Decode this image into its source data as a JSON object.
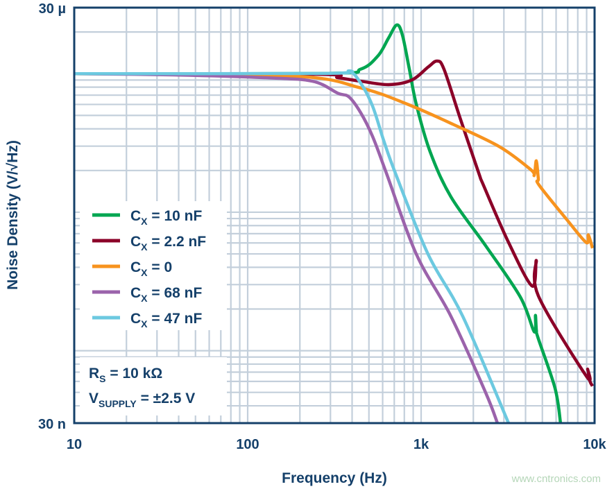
{
  "chart_data": {
    "type": "line",
    "xlabel": "Frequency (Hz)",
    "ylabel": "Noise Density (V/√Hz)",
    "x_scale": "log",
    "y_scale": "log",
    "xlim": [
      10,
      10000
    ],
    "ylim": [
      3e-08,
      3e-05
    ],
    "x_ticks": [
      {
        "value": 10,
        "label": "10"
      },
      {
        "value": 100,
        "label": "100"
      },
      {
        "value": 1000,
        "label": "1k"
      },
      {
        "value": 10000,
        "label": "10k"
      }
    ],
    "y_ticks": [
      {
        "value": 3e-05,
        "label": "30 µ"
      },
      {
        "value": 3e-08,
        "label": "30 n"
      }
    ],
    "grid": true,
    "legend_position": "left",
    "series": [
      {
        "name": "CX = 10 nF",
        "label": {
          "main": "C",
          "sub": "X",
          "rest": " = 10 nF"
        },
        "color": "#00a651",
        "points": [
          [
            10,
            1e-05
          ],
          [
            283,
            1.005e-05
          ],
          [
            449,
            1.08e-05
          ],
          [
            565,
            1.35e-05
          ],
          [
            649,
            1.81e-05
          ],
          [
            724,
            2.25e-05
          ],
          [
            780,
            1.9e-05
          ],
          [
            855,
            1.08e-05
          ],
          [
            938,
            6e-06
          ],
          [
            1127,
            2.73e-06
          ],
          [
            1486,
            1.29e-06
          ],
          [
            2355,
            5.73e-07
          ],
          [
            3733,
            2.44e-07
          ],
          [
            4490,
            1.37e-07
          ],
          [
            4560,
            1.8e-07
          ],
          [
            4620,
            1.4e-07
          ],
          [
            4740,
            1.22e-07
          ],
          [
            5920,
            5.34e-08
          ],
          [
            6370,
            2.97e-08
          ]
        ]
      },
      {
        "name": "CX = 2.2 nF",
        "label": {
          "main": "C",
          "sub": "X",
          "rest": " = 2.2 nF"
        },
        "color": "#8b0028",
        "points": [
          [
            10,
            1e-05
          ],
          [
            250,
            9.9e-06
          ],
          [
            331,
            9.36e-06
          ],
          [
            449,
            8.83e-06
          ],
          [
            649,
            8.34e-06
          ],
          [
            880,
            8.98e-06
          ],
          [
            1100,
            1.12e-05
          ],
          [
            1236,
            1.234e-05
          ],
          [
            1355,
            1.077e-05
          ],
          [
            1675,
            4.81e-06
          ],
          [
            2148,
            1.92e-06
          ],
          [
            2291,
            1.56e-06
          ],
          [
            3192,
            6.05e-07
          ],
          [
            4365,
            2.93e-07
          ],
          [
            4613,
            4.48e-07
          ],
          [
            4740,
            2.49e-07
          ],
          [
            8954,
            6.56e-08
          ],
          [
            9120,
            7.36e-08
          ],
          [
            9376,
            6.08e-08
          ],
          [
            9727,
            5.55e-08
          ]
        ]
      },
      {
        "name": "CX = 0",
        "label": {
          "main": "C",
          "sub": "X",
          "rest": " = 0"
        },
        "color": "#f7931e",
        "points": [
          [
            10,
            1e-05
          ],
          [
            179,
            9.62e-06
          ],
          [
            449,
            7.89e-06
          ],
          [
            832,
            6.03e-06
          ],
          [
            1528,
            4.31e-06
          ],
          [
            2831,
            2.97e-06
          ],
          [
            4285,
            2.03e-06
          ],
          [
            4487,
            1.85e-06
          ],
          [
            4613,
            2.35e-06
          ],
          [
            4740,
            1.74e-06
          ],
          [
            4786,
            1.57e-06
          ],
          [
            6918,
            8.84e-07
          ],
          [
            8954,
            6.04e-07
          ],
          [
            9204,
            6.86e-07
          ],
          [
            9727,
            5.5e-07
          ]
        ]
      },
      {
        "name": "CX = 68 nF",
        "label": {
          "main": "C",
          "sub": "X",
          "rest": " = 68 nF"
        },
        "color": "#9b63ab",
        "points": [
          [
            10,
            1e-05
          ],
          [
            37.3,
            9.8e-06
          ],
          [
            124,
            9.36e-06
          ],
          [
            236,
            8.83e-06
          ],
          [
            331,
            7.23e-06
          ],
          [
            384,
            6.79e-06
          ],
          [
            449,
            5.21e-06
          ],
          [
            525,
            3.52e-06
          ],
          [
            631,
            1.91e-06
          ],
          [
            938,
            4.98e-07
          ],
          [
            1486,
            1.77e-07
          ],
          [
            2355,
            4.98e-08
          ],
          [
            2754,
            3e-08
          ]
        ]
      },
      {
        "name": "CX = 47 nF",
        "label": {
          "main": "C",
          "sub": "X",
          "rest": " = 47 nF"
        },
        "color": "#6cc9e0",
        "points": [
          [
            10,
            1e-05
          ],
          [
            283,
            1.005e-05
          ],
          [
            384,
            1.04e-05
          ],
          [
            449,
            8.52e-06
          ],
          [
            525,
            5.83e-06
          ],
          [
            608,
            3.3e-06
          ],
          [
            711,
            1.91e-06
          ],
          [
            1096,
            4.98e-07
          ],
          [
            1738,
            1.77e-07
          ],
          [
            3192,
            3e-08
          ]
        ]
      }
    ],
    "annotations": [
      {
        "main": "R",
        "sub": "S",
        "rest": " = 10 kΩ"
      },
      {
        "main": "V",
        "sub": "SUPPLY",
        "rest": " = ±2.5 V"
      }
    ]
  },
  "watermark": "www.cntronics.com",
  "colors": {
    "axis": "#15406a",
    "grid": "#c3cfdb"
  }
}
